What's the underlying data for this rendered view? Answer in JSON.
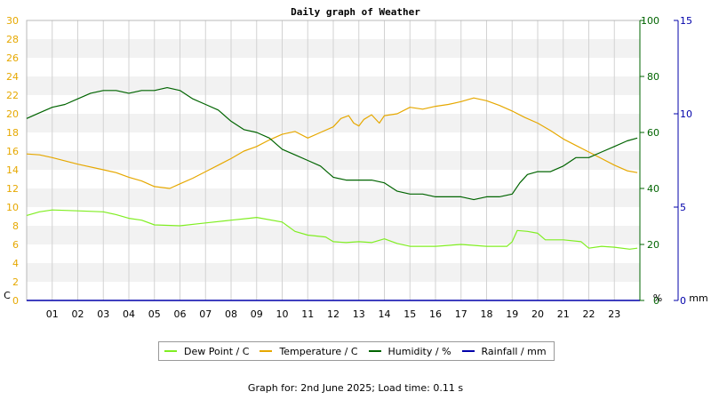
{
  "chart_data": {
    "type": "line",
    "title": "Daily graph of Weather",
    "x_ticks": [
      "01",
      "02",
      "03",
      "04",
      "05",
      "06",
      "07",
      "08",
      "09",
      "10",
      "11",
      "12",
      "13",
      "14",
      "15",
      "16",
      "17",
      "18",
      "19",
      "20",
      "21",
      "22",
      "23"
    ],
    "xlim": [
      0,
      24
    ],
    "axes": {
      "left": {
        "unit": "C",
        "min": 0,
        "max": 30,
        "step": 2,
        "color": "#e6a800"
      },
      "right1": {
        "unit": "%",
        "min": 0,
        "max": 100,
        "step": 20,
        "color": "#006400"
      },
      "right2": {
        "unit": "mm",
        "min": 0,
        "max": 15,
        "step": 5,
        "color": "#0000aa"
      }
    },
    "series": [
      {
        "name": "Dew Point / C",
        "axis": "left",
        "color": "#80ee22",
        "points": [
          [
            0,
            9.1
          ],
          [
            0.5,
            9.5
          ],
          [
            1,
            9.7
          ],
          [
            2,
            9.6
          ],
          [
            3,
            9.5
          ],
          [
            3.5,
            9.2
          ],
          [
            4,
            8.8
          ],
          [
            4.5,
            8.6
          ],
          [
            5,
            8.1
          ],
          [
            6,
            8.0
          ],
          [
            7,
            8.3
          ],
          [
            8,
            8.6
          ],
          [
            8.7,
            8.8
          ],
          [
            9,
            8.9
          ],
          [
            10,
            8.4
          ],
          [
            10.5,
            7.4
          ],
          [
            11,
            7.0
          ],
          [
            11.7,
            6.8
          ],
          [
            12,
            6.3
          ],
          [
            12.5,
            6.2
          ],
          [
            13,
            6.3
          ],
          [
            13.5,
            6.2
          ],
          [
            14,
            6.6
          ],
          [
            14.5,
            6.1
          ],
          [
            15,
            5.8
          ],
          [
            16,
            5.8
          ],
          [
            17,
            6.0
          ],
          [
            18,
            5.8
          ],
          [
            18.8,
            5.8
          ],
          [
            19,
            6.3
          ],
          [
            19.2,
            7.5
          ],
          [
            19.6,
            7.4
          ],
          [
            20,
            7.2
          ],
          [
            20.3,
            6.5
          ],
          [
            21,
            6.5
          ],
          [
            21.7,
            6.3
          ],
          [
            22,
            5.6
          ],
          [
            22.5,
            5.8
          ],
          [
            23,
            5.7
          ],
          [
            23.6,
            5.5
          ],
          [
            23.9,
            5.6
          ]
        ]
      },
      {
        "name": "Temperature / C",
        "axis": "left",
        "color": "#e6a800",
        "points": [
          [
            0,
            15.7
          ],
          [
            0.5,
            15.6
          ],
          [
            1,
            15.3
          ],
          [
            2,
            14.6
          ],
          [
            3,
            14.0
          ],
          [
            3.5,
            13.7
          ],
          [
            4,
            13.2
          ],
          [
            4.5,
            12.8
          ],
          [
            5,
            12.2
          ],
          [
            5.6,
            12.0
          ],
          [
            6,
            12.5
          ],
          [
            6.5,
            13.1
          ],
          [
            7,
            13.8
          ],
          [
            7.5,
            14.5
          ],
          [
            8,
            15.2
          ],
          [
            8.5,
            16.0
          ],
          [
            9,
            16.5
          ],
          [
            9.5,
            17.2
          ],
          [
            10,
            17.8
          ],
          [
            10.5,
            18.1
          ],
          [
            11,
            17.4
          ],
          [
            11.5,
            18.0
          ],
          [
            12,
            18.6
          ],
          [
            12.3,
            19.5
          ],
          [
            12.6,
            19.8
          ],
          [
            12.8,
            19.0
          ],
          [
            13,
            18.7
          ],
          [
            13.2,
            19.4
          ],
          [
            13.5,
            19.9
          ],
          [
            13.8,
            19.0
          ],
          [
            14,
            19.8
          ],
          [
            14.5,
            20.0
          ],
          [
            15,
            20.7
          ],
          [
            15.5,
            20.5
          ],
          [
            16,
            20.8
          ],
          [
            16.5,
            21.0
          ],
          [
            17,
            21.3
          ],
          [
            17.5,
            21.7
          ],
          [
            18,
            21.4
          ],
          [
            18.5,
            20.9
          ],
          [
            19,
            20.3
          ],
          [
            19.5,
            19.6
          ],
          [
            20,
            19.0
          ],
          [
            20.5,
            18.2
          ],
          [
            21,
            17.3
          ],
          [
            21.5,
            16.6
          ],
          [
            22,
            15.9
          ],
          [
            22.5,
            15.2
          ],
          [
            23,
            14.5
          ],
          [
            23.5,
            13.9
          ],
          [
            23.9,
            13.7
          ]
        ]
      },
      {
        "name": "Humidity / %",
        "axis": "right1",
        "color": "#006400",
        "points": [
          [
            0,
            65
          ],
          [
            0.5,
            67
          ],
          [
            1,
            69
          ],
          [
            1.5,
            70
          ],
          [
            2,
            72
          ],
          [
            2.5,
            74
          ],
          [
            3,
            75
          ],
          [
            3.5,
            75
          ],
          [
            4,
            74
          ],
          [
            4.5,
            75
          ],
          [
            5,
            75
          ],
          [
            5.5,
            76
          ],
          [
            6,
            75
          ],
          [
            6.5,
            72
          ],
          [
            7,
            70
          ],
          [
            7.5,
            68
          ],
          [
            8,
            64
          ],
          [
            8.5,
            61
          ],
          [
            9,
            60
          ],
          [
            9.5,
            58
          ],
          [
            10,
            54
          ],
          [
            10.5,
            52
          ],
          [
            11,
            50
          ],
          [
            11.5,
            48
          ],
          [
            12,
            44
          ],
          [
            12.5,
            43
          ],
          [
            13,
            43
          ],
          [
            13.5,
            43
          ],
          [
            14,
            42
          ],
          [
            14.5,
            39
          ],
          [
            15,
            38
          ],
          [
            15.5,
            38
          ],
          [
            16,
            37
          ],
          [
            16.5,
            37
          ],
          [
            17,
            37
          ],
          [
            17.5,
            36
          ],
          [
            18,
            37
          ],
          [
            18.5,
            37
          ],
          [
            19,
            38
          ],
          [
            19.3,
            42
          ],
          [
            19.6,
            45
          ],
          [
            20,
            46
          ],
          [
            20.5,
            46
          ],
          [
            21,
            48
          ],
          [
            21.5,
            51
          ],
          [
            22,
            51
          ],
          [
            22.5,
            53
          ],
          [
            23,
            55
          ],
          [
            23.5,
            57
          ],
          [
            23.9,
            58
          ]
        ]
      },
      {
        "name": "Rainfall / mm",
        "axis": "right2",
        "color": "#0000aa",
        "points": [
          [
            0,
            0
          ],
          [
            24,
            0
          ]
        ]
      }
    ]
  },
  "legend": [
    {
      "label": "Dew Point / C",
      "color": "#80ee22"
    },
    {
      "label": "Temperature / C",
      "color": "#e6a800"
    },
    {
      "label": "Humidity / %",
      "color": "#006400"
    },
    {
      "label": "Rainfall / mm",
      "color": "#0000aa"
    }
  ],
  "footer": "Graph for: 2nd June 2025; Load time: 0.11 s"
}
